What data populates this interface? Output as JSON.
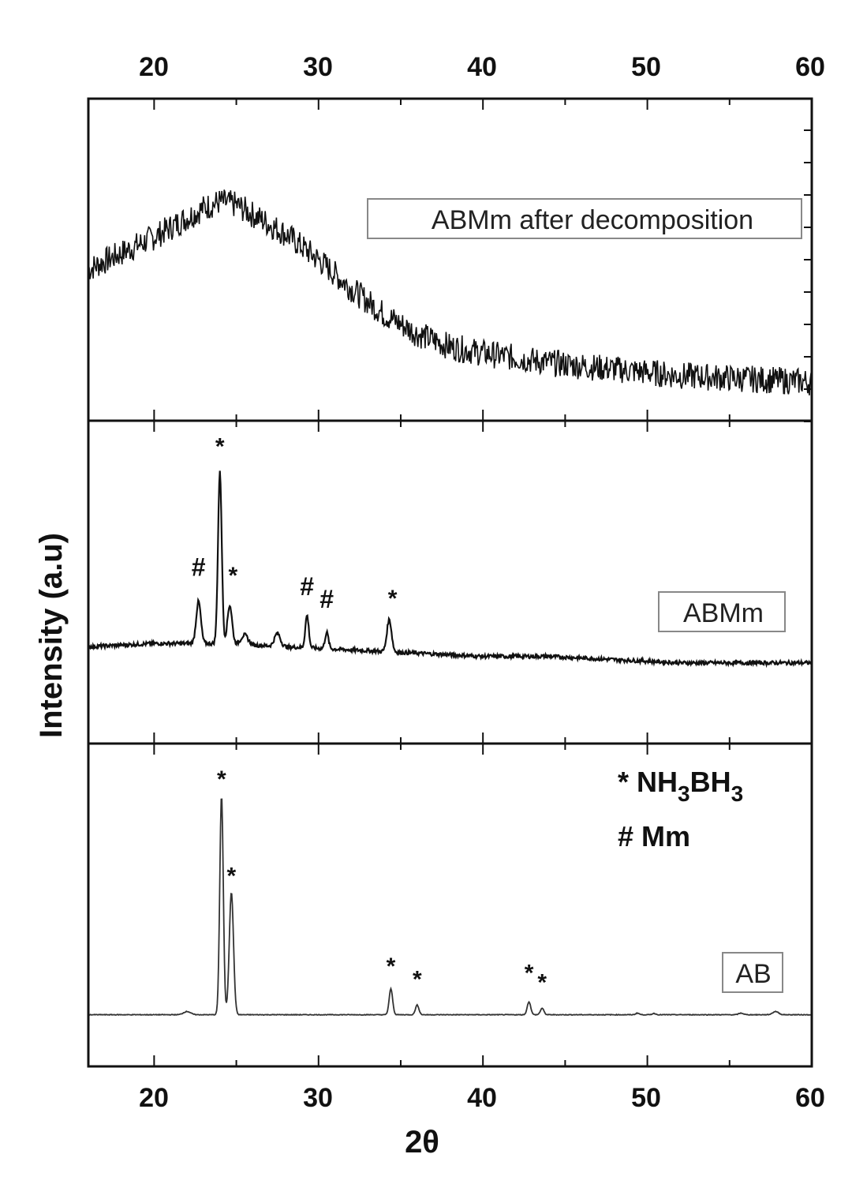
{
  "chart_data": {
    "type": "line",
    "xlabel": "2θ",
    "ylabel": "Intensity (a.u)",
    "xlim": [
      16,
      60
    ],
    "x_ticks": [
      20,
      30,
      40,
      50,
      60
    ],
    "x_tick_labels": [
      "20",
      "30",
      "40",
      "50",
      "60"
    ],
    "top_tick_labels": [
      "20",
      "30",
      "40",
      "50",
      "60"
    ],
    "marker_key": {
      "star_symbol": "*",
      "star_phase": "NH",
      "star_sub1": "3",
      "star_mid": "BH",
      "star_sub2": "3",
      "hash_symbol": "#",
      "hash_phase": "Mm"
    },
    "panels": [
      {
        "name": "ABMm after decomposition",
        "label": "ABMm after decomposition",
        "ylim": [
          0,
          1
        ],
        "x": [
          16,
          18,
          20,
          22,
          23,
          24,
          25,
          26,
          28,
          30,
          32,
          34,
          36,
          38,
          40,
          44,
          48,
          52,
          56,
          60
        ],
        "y": [
          0.47,
          0.52,
          0.57,
          0.63,
          0.66,
          0.68,
          0.67,
          0.64,
          0.58,
          0.5,
          0.41,
          0.33,
          0.27,
          0.23,
          0.21,
          0.18,
          0.16,
          0.14,
          0.13,
          0.12
        ],
        "markers": []
      },
      {
        "name": "ABMm",
        "label": "ABMm",
        "ylim": [
          0,
          1
        ],
        "baseline": [
          [
            16,
            0.3
          ],
          [
            20,
            0.31
          ],
          [
            24,
            0.31
          ],
          [
            28,
            0.3
          ],
          [
            32,
            0.29
          ],
          [
            36,
            0.28
          ],
          [
            40,
            0.27
          ],
          [
            44,
            0.27
          ],
          [
            48,
            0.26
          ],
          [
            52,
            0.25
          ],
          [
            56,
            0.25
          ],
          [
            60,
            0.25
          ]
        ],
        "peaks": [
          {
            "x": 22.7,
            "height": 0.13,
            "width": 0.2
          },
          {
            "x": 24.0,
            "height": 0.53,
            "width": 0.16
          },
          {
            "x": 24.6,
            "height": 0.12,
            "width": 0.2
          },
          {
            "x": 25.5,
            "height": 0.03,
            "width": 0.3
          },
          {
            "x": 27.5,
            "height": 0.04,
            "width": 0.25
          },
          {
            "x": 29.3,
            "height": 0.1,
            "width": 0.15
          },
          {
            "x": 30.5,
            "height": 0.05,
            "width": 0.15
          },
          {
            "x": 34.3,
            "height": 0.1,
            "width": 0.2
          }
        ],
        "markers": [
          {
            "x": 24.0,
            "y": 0.93,
            "symbol": "*"
          },
          {
            "x": 22.7,
            "y": 0.52,
            "symbol": "#"
          },
          {
            "x": 24.8,
            "y": 0.53,
            "symbol": "*"
          },
          {
            "x": 29.3,
            "y": 0.46,
            "symbol": "#"
          },
          {
            "x": 30.5,
            "y": 0.42,
            "symbol": "#"
          },
          {
            "x": 34.5,
            "y": 0.46,
            "symbol": "*"
          }
        ]
      },
      {
        "name": "AB",
        "label": "AB",
        "ylim": [
          0,
          1
        ],
        "baseline": [
          [
            16,
            0.16
          ],
          [
            60,
            0.16
          ]
        ],
        "peaks": [
          {
            "x": 22.0,
            "height": 0.01,
            "width": 0.3
          },
          {
            "x": 24.1,
            "height": 0.68,
            "width": 0.15
          },
          {
            "x": 24.7,
            "height": 0.38,
            "width": 0.18
          },
          {
            "x": 34.4,
            "height": 0.08,
            "width": 0.15
          },
          {
            "x": 36.0,
            "height": 0.03,
            "width": 0.15
          },
          {
            "x": 42.8,
            "height": 0.04,
            "width": 0.15
          },
          {
            "x": 43.6,
            "height": 0.02,
            "width": 0.15
          },
          {
            "x": 49.4,
            "height": 0.005,
            "width": 0.15
          },
          {
            "x": 50.4,
            "height": 0.004,
            "width": 0.15
          },
          {
            "x": 55.7,
            "height": 0.005,
            "width": 0.2
          },
          {
            "x": 57.8,
            "height": 0.01,
            "width": 0.25
          }
        ],
        "markers": [
          {
            "x": 24.1,
            "y": 0.9,
            "symbol": "*"
          },
          {
            "x": 24.7,
            "y": 0.6,
            "symbol": "*"
          },
          {
            "x": 34.4,
            "y": 0.32,
            "symbol": "*"
          },
          {
            "x": 36.0,
            "y": 0.28,
            "symbol": "*"
          },
          {
            "x": 42.8,
            "y": 0.3,
            "symbol": "*"
          },
          {
            "x": 43.6,
            "y": 0.27,
            "symbol": "*"
          }
        ]
      }
    ]
  }
}
